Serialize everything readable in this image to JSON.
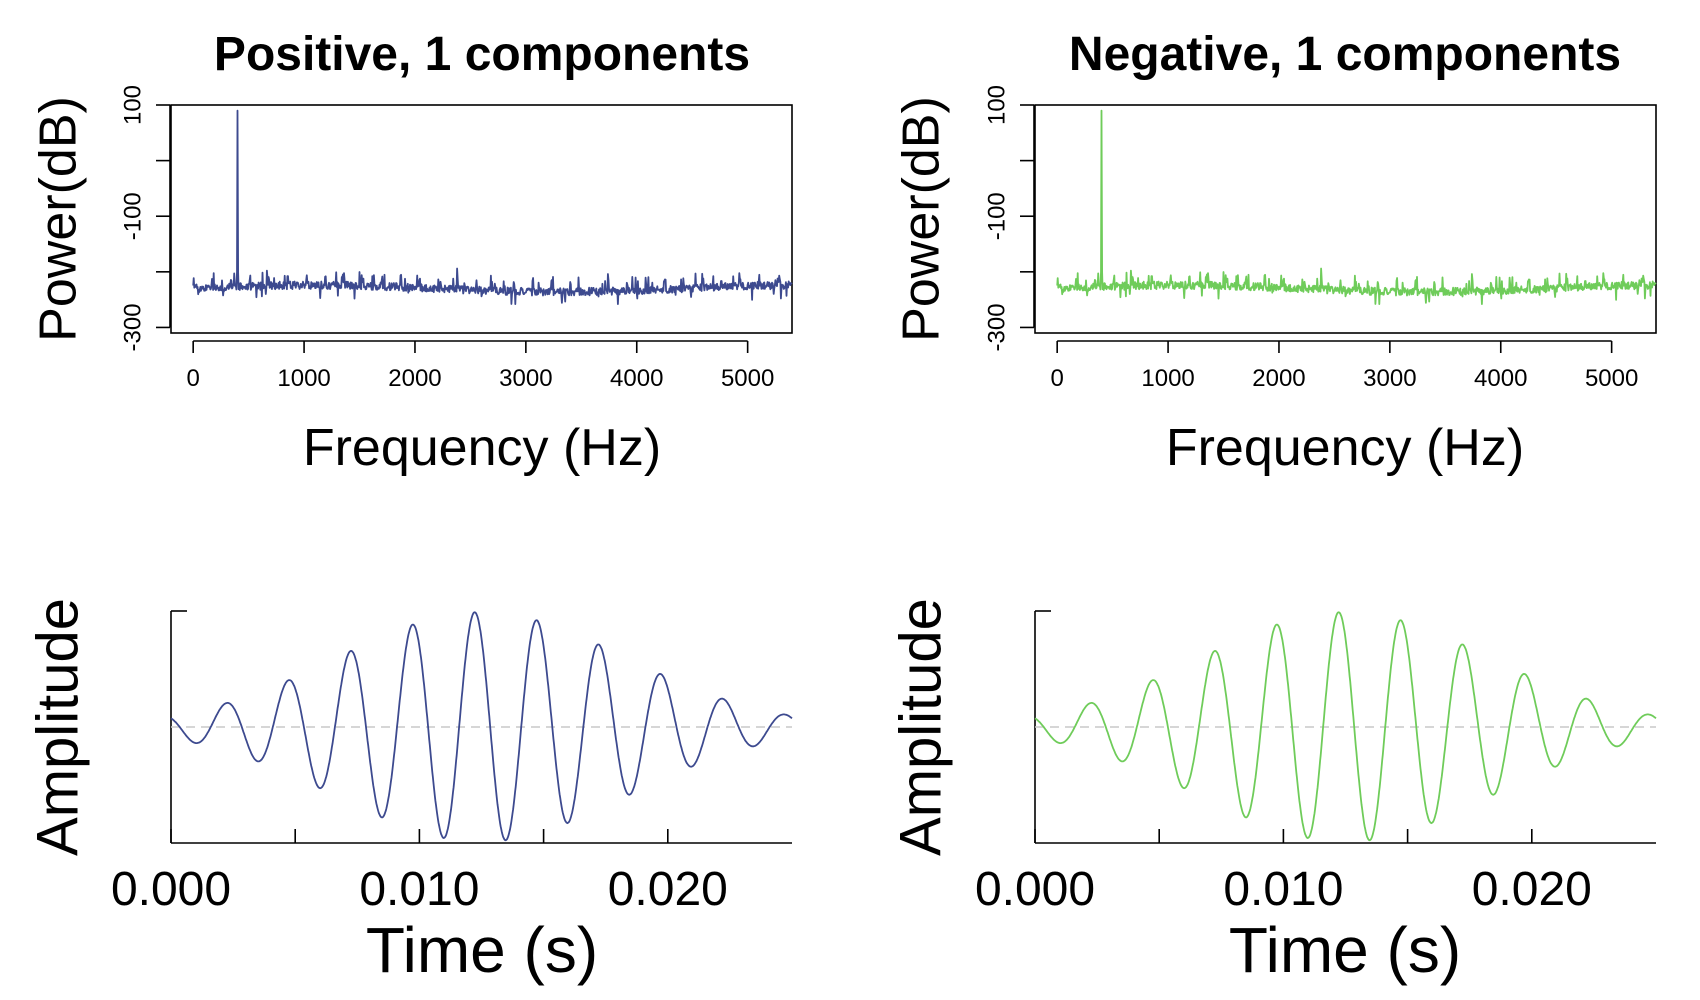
{
  "chart_data": [
    {
      "type": "line",
      "panel": "spectrum",
      "title": "Positive, 1 components",
      "xlabel": "Frequency (Hz)",
      "ylabel": "Power(dB)",
      "xlim": [
        -200,
        5400
      ],
      "ylim": [
        -310,
        100
      ],
      "xticks": [
        0,
        1000,
        2000,
        3000,
        4000,
        5000
      ],
      "yticks": [
        100,
        0,
        -100,
        -200,
        -300
      ],
      "ytick_labels": [
        "100",
        "",
        "-100",
        "",
        "-300"
      ],
      "color": "#3d4a8f",
      "peak": {
        "x": 400,
        "y": 90
      },
      "noise_floor": -230,
      "series": [
        {
          "x": [
            0,
            200,
            400,
            600,
            1000,
            2000,
            2600,
            2900,
            3000,
            4000,
            4600,
            5000,
            5400
          ],
          "y": [
            -232,
            -225,
            90,
            -226,
            -232,
            -222,
            -240,
            -255,
            -232,
            -235,
            -218,
            -234,
            -228
          ]
        }
      ]
    },
    {
      "type": "line",
      "panel": "spectrum",
      "title": "Negative, 1 components",
      "xlabel": "Frequency (Hz)",
      "ylabel": "Power(dB)",
      "xlim": [
        -200,
        5400
      ],
      "ylim": [
        -310,
        100
      ],
      "xticks": [
        0,
        1000,
        2000,
        3000,
        4000,
        5000
      ],
      "yticks": [
        100,
        0,
        -100,
        -200,
        -300
      ],
      "ytick_labels": [
        "100",
        "",
        "-100",
        "",
        "-300"
      ],
      "color": "#6fcc5a",
      "peak": {
        "x": 400,
        "y": 90
      },
      "noise_floor": -230,
      "series": [
        {
          "x": [
            0,
            200,
            400,
            600,
            1000,
            2000,
            2600,
            2900,
            3000,
            4000,
            4600,
            5000,
            5400
          ],
          "y": [
            -232,
            -225,
            90,
            -226,
            -232,
            -222,
            -240,
            -255,
            -232,
            -235,
            -218,
            -234,
            -228
          ]
        }
      ]
    },
    {
      "type": "line",
      "panel": "waveform",
      "xlabel": "Time (s)",
      "ylabel": "Amplitude",
      "xlim": [
        0,
        0.025
      ],
      "ylim": [
        -1,
        1
      ],
      "xticks": [
        0.0,
        0.005,
        0.01,
        0.015,
        0.02
      ],
      "xtick_labels": [
        "0.000",
        "",
        "0.010",
        "",
        "0.020"
      ],
      "color": "#3d4a8f",
      "frequency_hz": 400,
      "duration_s": 0.025,
      "envelope": "gaussian",
      "center_s": 0.0125,
      "zero_line": true
    },
    {
      "type": "line",
      "panel": "waveform",
      "xlabel": "Time (s)",
      "ylabel": "Amplitude",
      "xlim": [
        0,
        0.025
      ],
      "ylim": [
        -1,
        1
      ],
      "xticks": [
        0.0,
        0.005,
        0.01,
        0.015,
        0.02
      ],
      "xtick_labels": [
        "0.000",
        "",
        "0.010",
        "",
        "0.020"
      ],
      "color": "#6fcc5a",
      "frequency_hz": 400,
      "duration_s": 0.025,
      "envelope": "gaussian",
      "center_s": 0.0125,
      "zero_line": true
    }
  ]
}
